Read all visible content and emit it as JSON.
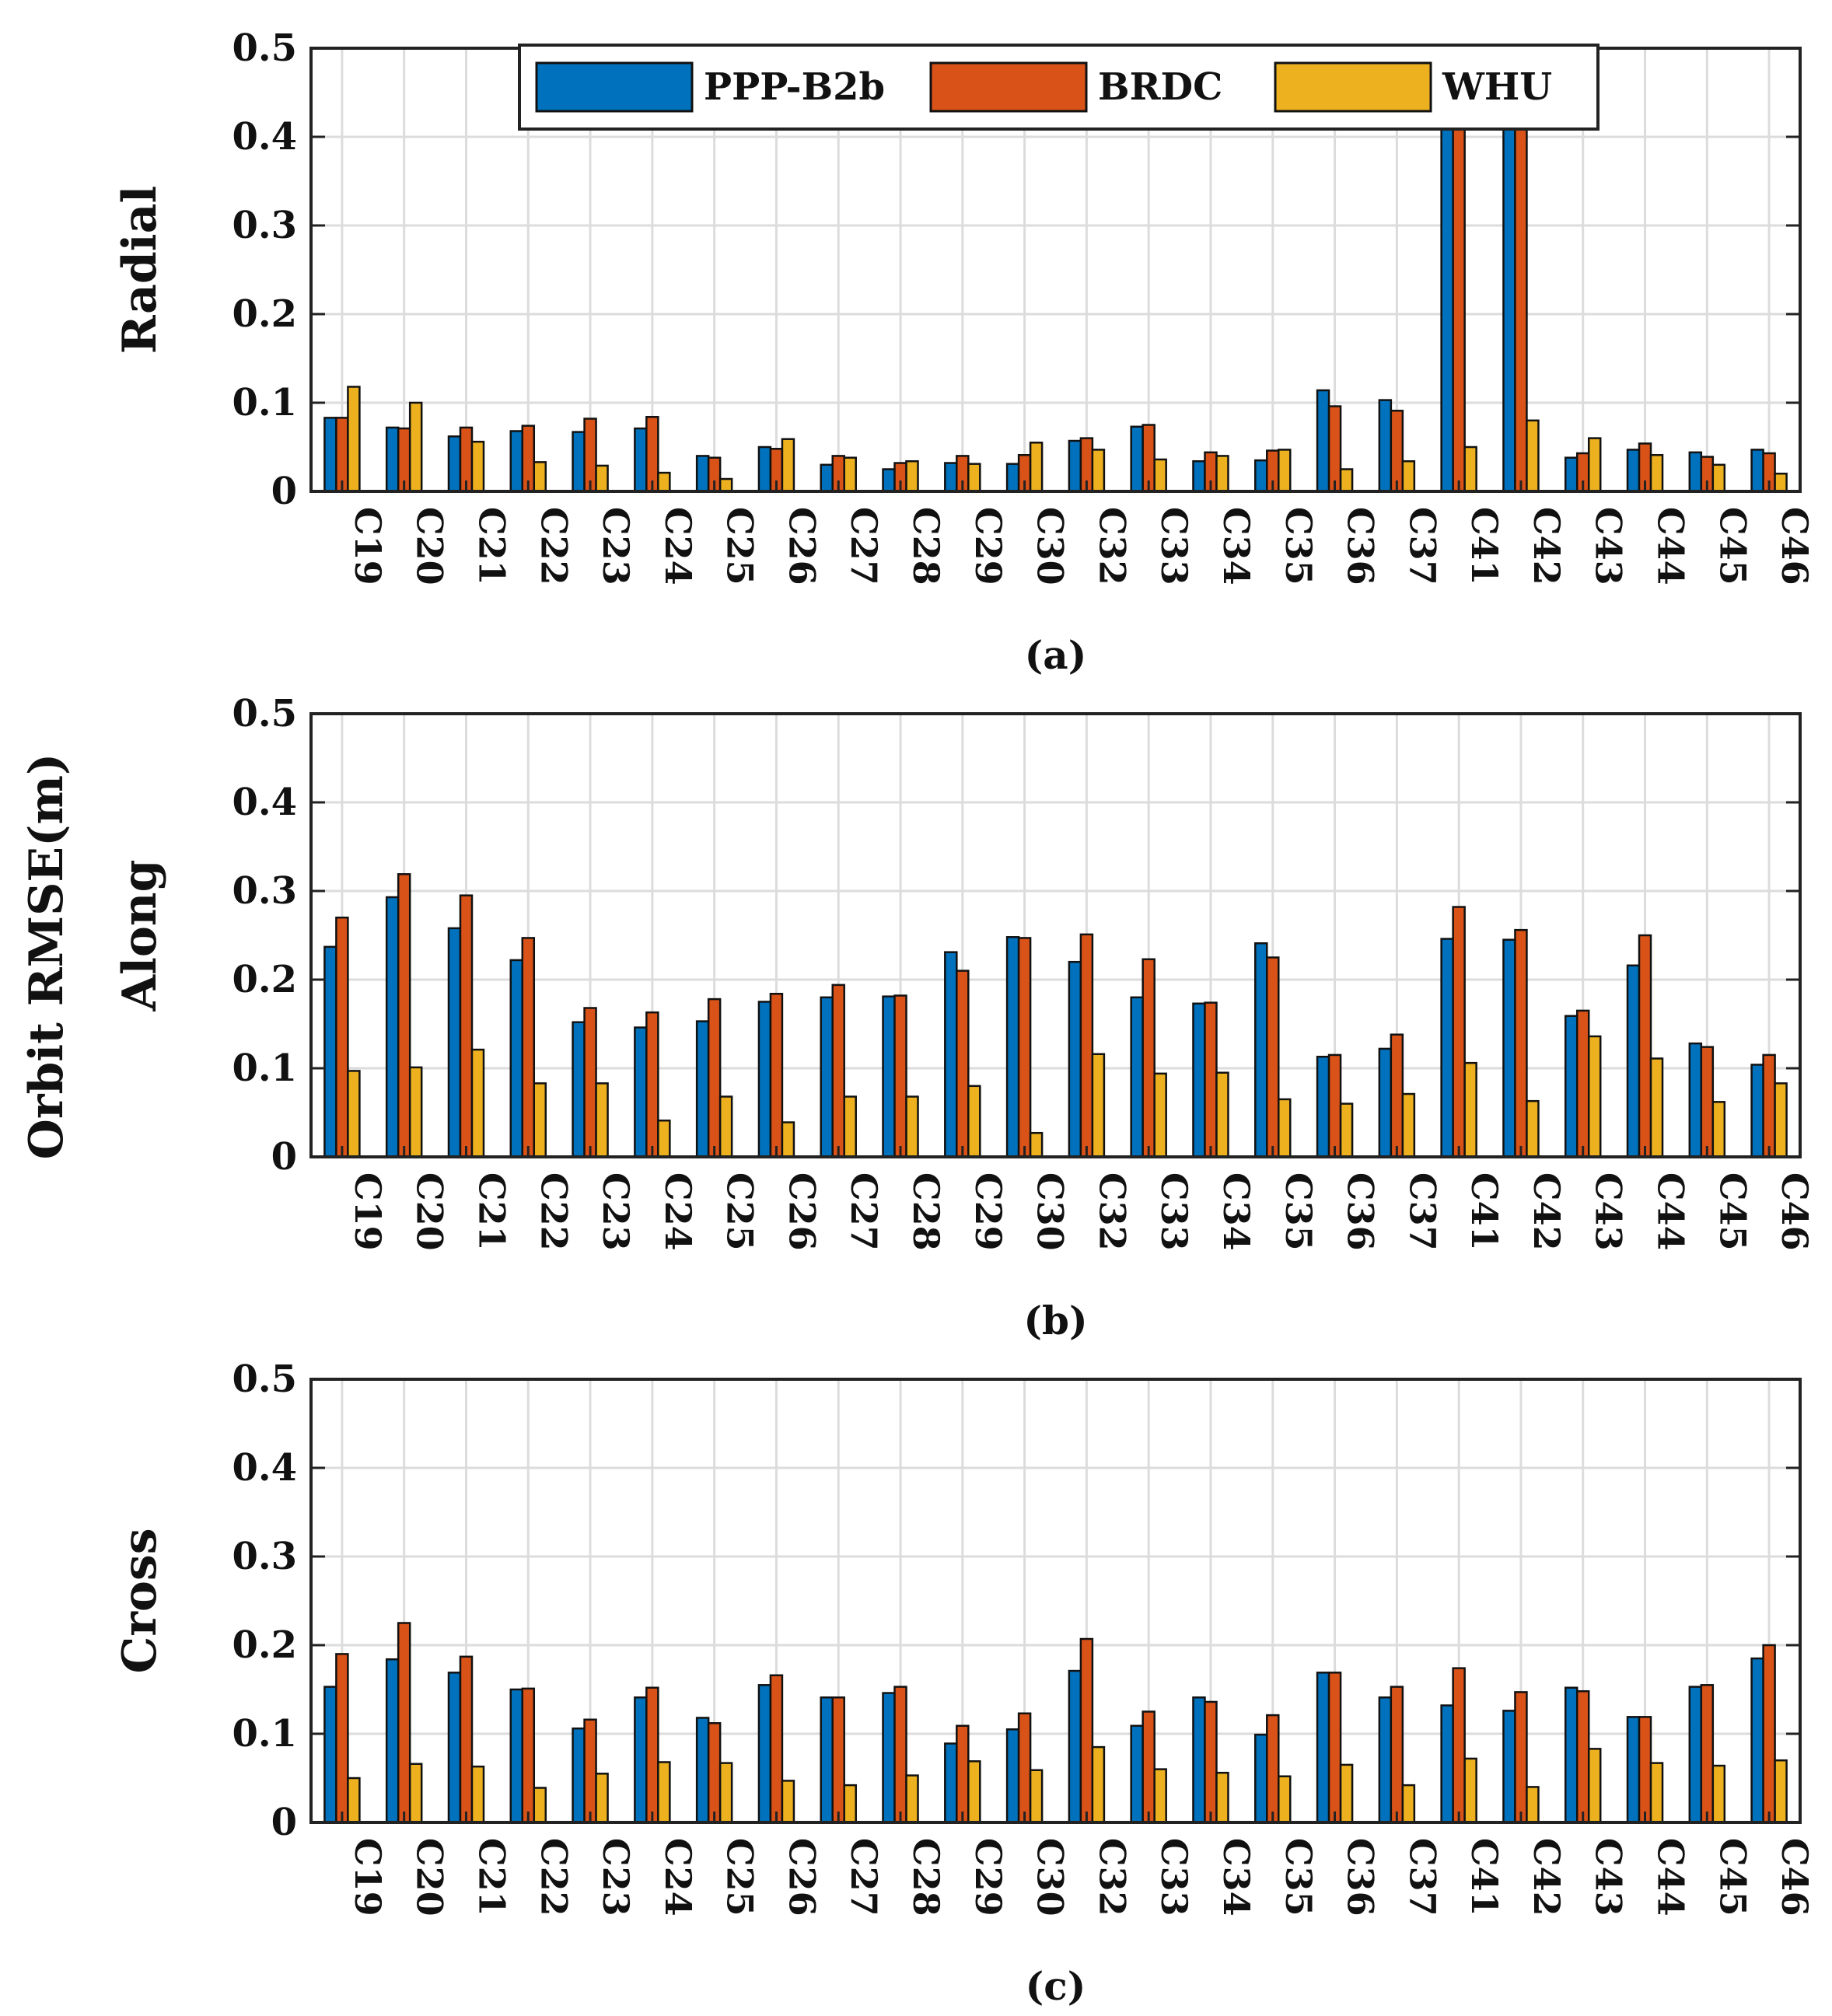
{
  "chart_data": {
    "type": "bar",
    "shared_ylabel": "Orbit RMSE(m)",
    "categories": [
      "C19",
      "C20",
      "C21",
      "C22",
      "C23",
      "C24",
      "C25",
      "C26",
      "C27",
      "C28",
      "C29",
      "C30",
      "C32",
      "C33",
      "C34",
      "C35",
      "C36",
      "C37",
      "C41",
      "C42",
      "C43",
      "C44",
      "C45",
      "C46"
    ],
    "ylim": [
      0,
      0.5
    ],
    "yticks": [
      "0",
      "0.1",
      "0.2",
      "0.3",
      "0.4",
      "0.5"
    ],
    "grid": true,
    "legend": {
      "placement": "top-center",
      "entries": [
        "PPP-B2b",
        "BRDC",
        "WHU"
      ]
    },
    "colors": {
      "PPP-B2b": "#0072BD",
      "BRDC": "#D95319",
      "WHU": "#EDB120"
    },
    "panels": [
      {
        "ylabel": "Radial",
        "caption": "(a)",
        "series": [
          {
            "name": "PPP-B2b",
            "values": [
              0.083,
              0.072,
              0.062,
              0.068,
              0.067,
              0.071,
              0.04,
              0.05,
              0.03,
              0.025,
              0.032,
              0.031,
              0.057,
              0.073,
              0.034,
              0.035,
              0.114,
              0.103,
              0.5,
              0.5,
              0.038,
              0.047,
              0.044,
              0.047
            ]
          },
          {
            "name": "BRDC",
            "values": [
              0.083,
              0.071,
              0.072,
              0.074,
              0.082,
              0.084,
              0.038,
              0.048,
              0.04,
              0.032,
              0.04,
              0.041,
              0.06,
              0.075,
              0.044,
              0.046,
              0.096,
              0.091,
              0.5,
              0.5,
              0.043,
              0.054,
              0.039,
              0.043
            ]
          },
          {
            "name": "WHU",
            "values": [
              0.118,
              0.1,
              0.056,
              0.033,
              0.029,
              0.021,
              0.014,
              0.059,
              0.038,
              0.034,
              0.031,
              0.055,
              0.047,
              0.036,
              0.04,
              0.047,
              0.025,
              0.034,
              0.05,
              0.08,
              0.06,
              0.041,
              0.03,
              0.02
            ]
          }
        ]
      },
      {
        "ylabel": "Along",
        "caption": "(b)",
        "series": [
          {
            "name": "PPP-B2b",
            "values": [
              0.237,
              0.293,
              0.258,
              0.222,
              0.152,
              0.146,
              0.153,
              0.175,
              0.18,
              0.181,
              0.231,
              0.248,
              0.22,
              0.18,
              0.173,
              0.241,
              0.113,
              0.122,
              0.246,
              0.245,
              0.159,
              0.216,
              0.128,
              0.104
            ]
          },
          {
            "name": "BRDC",
            "values": [
              0.27,
              0.319,
              0.295,
              0.247,
              0.168,
              0.163,
              0.178,
              0.184,
              0.194,
              0.182,
              0.21,
              0.247,
              0.251,
              0.223,
              0.174,
              0.225,
              0.115,
              0.138,
              0.282,
              0.256,
              0.165,
              0.25,
              0.124,
              0.115
            ]
          },
          {
            "name": "WHU",
            "values": [
              0.097,
              0.101,
              0.121,
              0.083,
              0.083,
              0.041,
              0.068,
              0.039,
              0.068,
              0.068,
              0.08,
              0.027,
              0.116,
              0.094,
              0.095,
              0.065,
              0.06,
              0.071,
              0.106,
              0.063,
              0.136,
              0.111,
              0.062,
              0.083
            ]
          }
        ]
      },
      {
        "ylabel": "Cross",
        "caption": "(c)",
        "series": [
          {
            "name": "PPP-B2b",
            "values": [
              0.153,
              0.184,
              0.169,
              0.15,
              0.106,
              0.141,
              0.118,
              0.155,
              0.141,
              0.146,
              0.089,
              0.105,
              0.171,
              0.109,
              0.141,
              0.099,
              0.169,
              0.141,
              0.132,
              0.126,
              0.152,
              0.119,
              0.153,
              0.185
            ]
          },
          {
            "name": "BRDC",
            "values": [
              0.19,
              0.225,
              0.187,
              0.151,
              0.116,
              0.152,
              0.112,
              0.166,
              0.141,
              0.153,
              0.109,
              0.123,
              0.207,
              0.125,
              0.136,
              0.121,
              0.169,
              0.153,
              0.174,
              0.147,
              0.148,
              0.119,
              0.155,
              0.2
            ]
          },
          {
            "name": "WHU",
            "values": [
              0.05,
              0.066,
              0.063,
              0.039,
              0.055,
              0.068,
              0.067,
              0.047,
              0.042,
              0.053,
              0.069,
              0.059,
              0.085,
              0.06,
              0.056,
              0.052,
              0.065,
              0.042,
              0.072,
              0.04,
              0.083,
              0.067,
              0.064,
              0.07
            ]
          }
        ]
      }
    ]
  }
}
